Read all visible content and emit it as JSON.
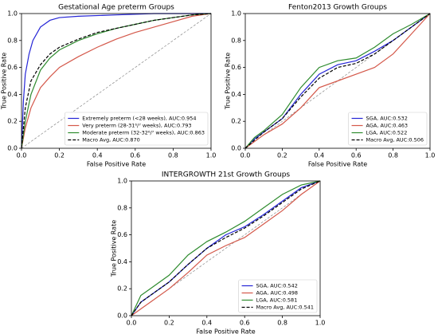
{
  "chart_data": [
    {
      "type": "line",
      "title": "Gestational Age preterm Groups",
      "x_label": "False Positive Rate",
      "y_label": "True Positive Rate",
      "xlim": [
        0,
        1
      ],
      "ylim": [
        0,
        1
      ],
      "xticks": [
        {
          "value": 0,
          "label": "0.0"
        },
        0.2,
        0.4,
        0.6,
        0.8,
        {
          "value": 1,
          "label": "1.0"
        }
      ],
      "yticks": [
        {
          "value": 0,
          "label": "0.0"
        },
        0.2,
        0.4,
        0.6,
        0.8,
        {
          "value": 1,
          "label": "1.0"
        }
      ],
      "legend": "lower right",
      "series": [
        {
          "name": "Extremely preterm (<28 weeks), AUC:0.954",
          "color": "#2424d6",
          "linestyle": "solid",
          "x": [
            0,
            0.01,
            0.02,
            0.04,
            0.06,
            0.1,
            0.15,
            0.2,
            0.3,
            0.5,
            0.7,
            1
          ],
          "values": [
            0,
            0.35,
            0.55,
            0.7,
            0.8,
            0.9,
            0.95,
            0.97,
            0.98,
            0.99,
            1,
            1
          ]
        },
        {
          "name": "Very preterm (28-31⁶/⁷ weeks), AUC:0.793",
          "color": "#d4584a",
          "linestyle": "solid",
          "x": [
            0,
            0.02,
            0.05,
            0.1,
            0.15,
            0.2,
            0.3,
            0.4,
            0.5,
            0.6,
            0.7,
            0.8,
            0.9,
            1
          ],
          "values": [
            0,
            0.15,
            0.3,
            0.45,
            0.53,
            0.6,
            0.68,
            0.75,
            0.81,
            0.86,
            0.9,
            0.94,
            0.98,
            1
          ]
        },
        {
          "name": "Moderate preterm (32-32⁶/⁷ weeks), AUC:0.863",
          "color": "#2e8b2e",
          "linestyle": "solid",
          "x": [
            0,
            0.02,
            0.05,
            0.1,
            0.15,
            0.2,
            0.3,
            0.4,
            0.5,
            0.6,
            0.7,
            0.8,
            0.9,
            1
          ],
          "values": [
            0,
            0.2,
            0.4,
            0.58,
            0.67,
            0.73,
            0.8,
            0.85,
            0.89,
            0.92,
            0.95,
            0.97,
            0.99,
            1
          ]
        },
        {
          "name": "Macro Avg, AUC:0.870",
          "color": "#000000",
          "linestyle": "dashed",
          "x": [
            0,
            0.02,
            0.05,
            0.1,
            0.15,
            0.2,
            0.3,
            0.4,
            0.5,
            0.6,
            0.7,
            0.8,
            0.9,
            1
          ],
          "values": [
            0,
            0.3,
            0.5,
            0.62,
            0.7,
            0.75,
            0.81,
            0.86,
            0.89,
            0.92,
            0.95,
            0.97,
            0.99,
            1
          ]
        }
      ]
    },
    {
      "type": "line",
      "title": "Fenton2013 Growth Groups",
      "x_label": "False Positive Rate",
      "y_label": "True Positive Rate",
      "xlim": [
        0,
        1
      ],
      "ylim": [
        0,
        1
      ],
      "xticks": [
        {
          "value": 0,
          "label": "0.0"
        },
        0.2,
        0.4,
        0.6,
        0.8,
        {
          "value": 1,
          "label": "1.0"
        }
      ],
      "yticks": [
        {
          "value": 0,
          "label": "0.0"
        },
        0.2,
        0.4,
        0.6,
        0.8,
        {
          "value": 1,
          "label": "1.0"
        }
      ],
      "legend": "lower right",
      "series": [
        {
          "name": "SGA, AUC:0.532",
          "color": "#2424d6",
          "linestyle": "solid",
          "x": [
            0,
            0.05,
            0.1,
            0.2,
            0.3,
            0.4,
            0.5,
            0.6,
            0.7,
            0.8,
            0.9,
            1
          ],
          "values": [
            0,
            0.07,
            0.12,
            0.22,
            0.4,
            0.55,
            0.62,
            0.65,
            0.72,
            0.8,
            0.9,
            1
          ]
        },
        {
          "name": "AGA, AUC:0.463",
          "color": "#d4584a",
          "linestyle": "solid",
          "x": [
            0,
            0.05,
            0.1,
            0.2,
            0.3,
            0.4,
            0.5,
            0.6,
            0.7,
            0.8,
            0.9,
            1
          ],
          "values": [
            0,
            0.05,
            0.1,
            0.18,
            0.3,
            0.45,
            0.5,
            0.55,
            0.6,
            0.7,
            0.85,
            1
          ]
        },
        {
          "name": "LGA, AUC:0.522",
          "color": "#2e8b2e",
          "linestyle": "solid",
          "x": [
            0,
            0.05,
            0.1,
            0.2,
            0.3,
            0.4,
            0.5,
            0.6,
            0.7,
            0.8,
            0.9,
            1
          ],
          "values": [
            0,
            0.08,
            0.13,
            0.25,
            0.45,
            0.6,
            0.65,
            0.67,
            0.75,
            0.85,
            0.92,
            1
          ]
        },
        {
          "name": "Macro Avg, AUC:0.506",
          "color": "#000000",
          "linestyle": "dashed",
          "x": [
            0,
            0.05,
            0.1,
            0.2,
            0.3,
            0.4,
            0.5,
            0.6,
            0.7,
            0.8,
            0.9,
            1
          ],
          "values": [
            0,
            0.06,
            0.12,
            0.22,
            0.38,
            0.52,
            0.6,
            0.63,
            0.7,
            0.8,
            0.9,
            1
          ]
        }
      ]
    },
    {
      "type": "line",
      "title": "INTERGROWTH 21st Growth Groups",
      "x_label": "False Positive Rate",
      "y_label": "True Positive Rate",
      "xlim": [
        0,
        1
      ],
      "ylim": [
        0,
        1
      ],
      "xticks": [
        {
          "value": 0,
          "label": "0.0"
        },
        0.2,
        0.4,
        0.6,
        0.8,
        {
          "value": 1,
          "label": "1.0"
        }
      ],
      "yticks": [
        {
          "value": 0,
          "label": "0.0"
        },
        0.2,
        0.4,
        0.6,
        0.8,
        {
          "value": 1,
          "label": "1.0"
        }
      ],
      "legend": "lower right",
      "series": [
        {
          "name": "SGA, AUC:0.542",
          "color": "#2424d6",
          "linestyle": "solid",
          "x": [
            0,
            0.05,
            0.1,
            0.2,
            0.3,
            0.4,
            0.5,
            0.6,
            0.7,
            0.8,
            0.9,
            1
          ],
          "values": [
            0,
            0.1,
            0.15,
            0.25,
            0.38,
            0.5,
            0.6,
            0.66,
            0.75,
            0.85,
            0.95,
            1
          ]
        },
        {
          "name": "AGA, AUC:0.498",
          "color": "#d4584a",
          "linestyle": "solid",
          "x": [
            0,
            0.05,
            0.1,
            0.2,
            0.3,
            0.4,
            0.5,
            0.6,
            0.7,
            0.8,
            0.9,
            1
          ],
          "values": [
            0,
            0.05,
            0.1,
            0.2,
            0.32,
            0.45,
            0.52,
            0.58,
            0.68,
            0.78,
            0.9,
            1
          ]
        },
        {
          "name": "LGA, AUC:0.581",
          "color": "#2e8b2e",
          "linestyle": "solid",
          "x": [
            0,
            0.05,
            0.1,
            0.2,
            0.3,
            0.4,
            0.5,
            0.6,
            0.7,
            0.8,
            0.9,
            1
          ],
          "values": [
            0,
            0.15,
            0.2,
            0.3,
            0.45,
            0.55,
            0.62,
            0.7,
            0.8,
            0.9,
            0.97,
            1
          ]
        },
        {
          "name": "Macro Avg, AUC:0.541",
          "color": "#000000",
          "linestyle": "dashed",
          "x": [
            0,
            0.05,
            0.1,
            0.2,
            0.3,
            0.4,
            0.5,
            0.6,
            0.7,
            0.8,
            0.9,
            1
          ],
          "values": [
            0,
            0.1,
            0.15,
            0.25,
            0.38,
            0.5,
            0.58,
            0.65,
            0.74,
            0.84,
            0.94,
            1
          ]
        }
      ]
    }
  ]
}
